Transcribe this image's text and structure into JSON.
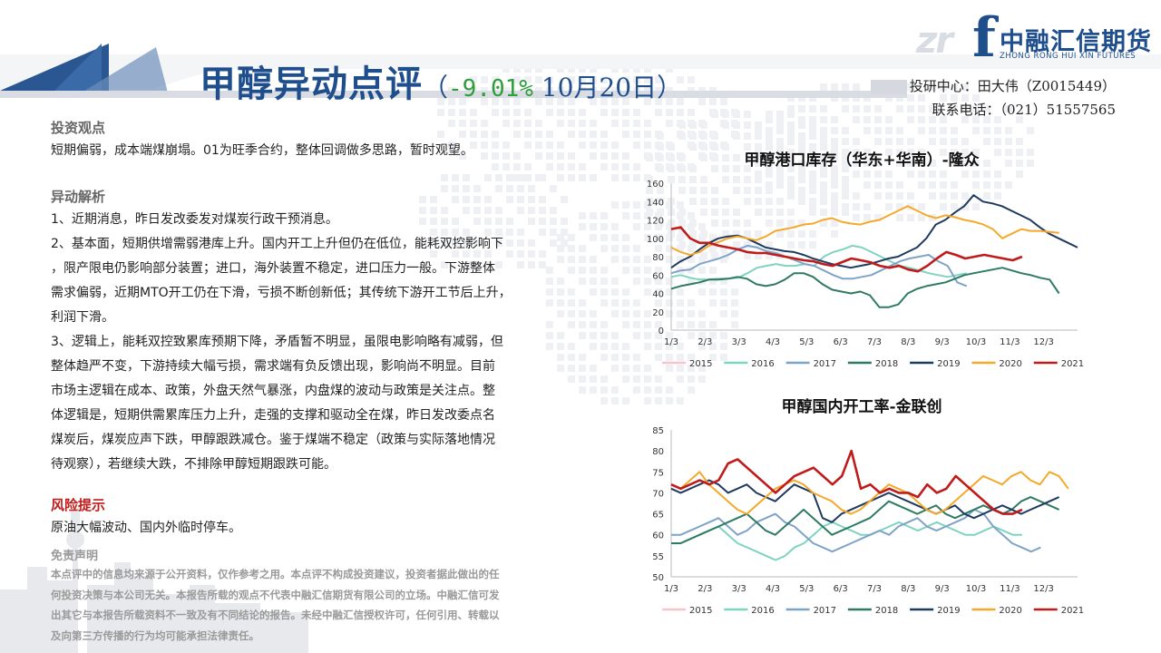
{
  "header": {
    "title_main": "甲醇异动点评",
    "title_paren_open": "（",
    "title_pct": "-9.01%",
    "title_date": " 10月20日）"
  },
  "logo": {
    "cn": "中融汇信期货",
    "en": "ZHONG RONG HUI XIN FUTURES",
    "letter": "f",
    "mark": "zr"
  },
  "contact": {
    "analyst": "投研中心：田大伟（Z0015449）",
    "phone": "联系电话：（021）51557565"
  },
  "sections": {
    "view_heading": "投资观点",
    "view_text": "短期偏弱，成本端煤崩塌。01为旺季合约，整体回调做多思路，暂时观望。",
    "analysis_heading": "异动解析",
    "analysis_lines": [
      "1、近期消息，昨日发改委发对煤炭行政干预消息。",
      "2、基本面，短期供增需弱港库上升。国内开工上升但仍在低位，能耗双控影响下",
      "，限产限电仍影响部分装置；进口，海外装置不稳定，进口压力一般。下游整体",
      "需求偏弱，近期MTO开工仍在下滑，亏损不断创新低；其传统下游开工节后上升，",
      "利润下滑。",
      "3、逻辑上，能耗双控致累库预期下降，矛盾暂不明显，虽限电影响略有减弱，但",
      "整体趋严不变，下游持续大幅亏损，需求端有负反馈出现，影响尚不明显。目前",
      "市场主逻辑在成本、政策，外盘天然气暴涨，内盘煤的波动与政策是关注点。整",
      "体逻辑是，短期供需累库压力上升，走强的支撑和驱动全在煤，昨日发改委点名",
      "煤炭后，煤炭应声下跌，甲醇跟跌减仓。鉴于煤端不稳定（政策与实际落地情况",
      "待观察），若继续大跌，不排除甲醇短期跟跌可能。"
    ],
    "risk_heading": "风险提示",
    "risk_text": "原油大幅波动、国内外临时停车。",
    "disclaimer_heading": "免责声明",
    "disclaimer_lines": [
      "本点评中的信息均来源于公开资料，仅作参考之用。本点评不构成投资建议，投资者据此做出的任",
      "何投资决策与本公司无关。本报告所载的观点不代表中融汇信期货有限公司的立场。中融汇信可发",
      "出其它与本报告所载资料不一致及有不同结论的报告。未经中融汇信授权许可，任何引用、转载以",
      "及向第三方传播的行为均可能承担法律责任。"
    ]
  },
  "colors": {
    "brand_blue": "#1f4e8c",
    "up_green": "#2e9e3a",
    "risk_red": "#c01b1b"
  },
  "chart_data": [
    {
      "type": "line",
      "title": "甲醇港口库存（华东+华南）-隆众",
      "xlabel": "",
      "ylabel": "",
      "x_ticks": [
        "1/3",
        "2/3",
        "3/3",
        "4/3",
        "5/3",
        "6/3",
        "7/3",
        "8/3",
        "9/3",
        "10/3",
        "11/3",
        "12/3"
      ],
      "ylim": [
        0,
        160
      ],
      "y_ticks": [
        0,
        20,
        40,
        60,
        80,
        100,
        120,
        140,
        160
      ],
      "grid": false,
      "legend": "bottom",
      "series": [
        {
          "name": "2015",
          "color": "#f3c6cc",
          "values": []
        },
        {
          "name": "2016",
          "color": "#7fd3c0",
          "values": [
            58,
            60,
            57,
            55,
            55,
            56,
            56,
            57,
            62,
            68,
            70,
            72,
            70,
            70,
            72,
            70,
            80,
            85,
            88,
            92,
            90,
            85,
            80,
            75,
            70,
            68,
            65,
            62,
            60,
            58,
            60,
            62
          ]
        },
        {
          "name": "2017",
          "color": "#7fa3c8",
          "values": [
            62,
            65,
            66,
            72,
            75,
            78,
            82,
            88,
            92,
            90,
            86,
            84,
            80,
            76,
            72,
            70,
            65,
            60,
            56,
            56,
            58,
            60,
            65,
            70,
            75,
            78,
            80,
            82,
            75,
            70,
            52,
            48
          ]
        },
        {
          "name": "2018",
          "color": "#2f7a63",
          "values": [
            45,
            48,
            50,
            52,
            55,
            55,
            56,
            58,
            56,
            50,
            48,
            50,
            55,
            62,
            62,
            58,
            50,
            44,
            42,
            40,
            42,
            38,
            25,
            25,
            28,
            40,
            45,
            48,
            50,
            52,
            56,
            60,
            62,
            64,
            66,
            68,
            65,
            62,
            60,
            57,
            55,
            40
          ]
        },
        {
          "name": "2019",
          "color": "#1e3a5f",
          "values": [
            68,
            75,
            80,
            88,
            95,
            100,
            102,
            103,
            100,
            95,
            90,
            88,
            86,
            85,
            82,
            78,
            75,
            72,
            70,
            68,
            70,
            72,
            75,
            78,
            80,
            85,
            90,
            100,
            115,
            120,
            128,
            135,
            147,
            140,
            138,
            135,
            130,
            125,
            120,
            112,
            105,
            100,
            95,
            90
          ]
        },
        {
          "name": "2020",
          "color": "#f5a82a",
          "values": [
            90,
            85,
            82,
            85,
            92,
            96,
            100,
            102,
            100,
            98,
            102,
            108,
            110,
            112,
            115,
            116,
            120,
            122,
            118,
            116,
            115,
            118,
            120,
            125,
            130,
            135,
            130,
            125,
            122,
            125,
            123,
            120,
            118,
            115,
            110,
            100,
            105,
            110,
            108,
            108,
            107,
            106
          ]
        },
        {
          "name": "2021",
          "color": "#c01b1b",
          "values": [
            110,
            112,
            100,
            95,
            95,
            92,
            90,
            88,
            85,
            84,
            84,
            82,
            80,
            78,
            76,
            75,
            72,
            70,
            74,
            78,
            76,
            74,
            70,
            68,
            70,
            66,
            64,
            70,
            78,
            85,
            82,
            78,
            80,
            82,
            80,
            78,
            76,
            80
          ]
        }
      ]
    },
    {
      "type": "line",
      "title": "甲醇国内开工率-金联创",
      "xlabel": "",
      "ylabel": "",
      "x_ticks": [
        "1/3",
        "2/3",
        "3/3",
        "4/3",
        "5/3",
        "6/3",
        "7/3",
        "8/3",
        "9/3",
        "10/3",
        "11/3",
        "12/3"
      ],
      "ylim": [
        50,
        85
      ],
      "y_ticks": [
        50,
        55,
        60,
        65,
        70,
        75,
        80,
        85
      ],
      "grid": false,
      "legend": "bottom",
      "series": [
        {
          "name": "2015",
          "color": "#f3c6cc",
          "values": []
        },
        {
          "name": "2016",
          "color": "#7fd3c0",
          "values": [
            58,
            58,
            59,
            60,
            61,
            62,
            60,
            58,
            57,
            56,
            55,
            54,
            55,
            57,
            58,
            60,
            62,
            63,
            62,
            61,
            60,
            60,
            61,
            62,
            63,
            62,
            61,
            62,
            63,
            62,
            61,
            60,
            60,
            61,
            62,
            61,
            60,
            60
          ]
        },
        {
          "name": "2017",
          "color": "#7fa3c8",
          "values": [
            60,
            60,
            61,
            62,
            63,
            64,
            62,
            60,
            61,
            63,
            64,
            65,
            63,
            62,
            60,
            58,
            57,
            56,
            57,
            58,
            59,
            60,
            61,
            60,
            62,
            63,
            64,
            62,
            61,
            62,
            63,
            64,
            66,
            65,
            62,
            60,
            58,
            57,
            56,
            57
          ]
        },
        {
          "name": "2018",
          "color": "#2f7a63",
          "values": [
            58,
            58,
            59,
            60,
            61,
            62,
            63,
            64,
            65,
            63,
            61,
            60,
            62,
            64,
            66,
            64,
            62,
            60,
            61,
            62,
            63,
            64,
            66,
            68,
            67,
            66,
            65,
            66,
            67,
            65,
            64,
            65,
            66,
            67,
            66,
            65,
            66,
            68,
            69,
            68,
            67,
            66
          ]
        },
        {
          "name": "2019",
          "color": "#1e3a5f",
          "values": [
            71,
            70,
            71,
            72,
            73,
            72,
            70,
            71,
            72,
            70,
            69,
            68,
            70,
            72,
            71,
            70,
            64,
            63,
            65,
            66,
            67,
            68,
            69,
            70,
            69,
            68,
            67,
            66,
            65,
            66,
            67,
            65,
            64,
            65,
            66,
            67,
            66,
            65,
            66,
            67,
            68,
            69
          ]
        },
        {
          "name": "2020",
          "color": "#f5a82a",
          "values": [
            72,
            71,
            73,
            75,
            72,
            70,
            68,
            66,
            65,
            67,
            69,
            71,
            72,
            73,
            72,
            70,
            69,
            68,
            66,
            65,
            66,
            68,
            70,
            72,
            71,
            70,
            68,
            66,
            65,
            66,
            68,
            70,
            72,
            74,
            73,
            72,
            74,
            75,
            73,
            72,
            75,
            74,
            71
          ]
        },
        {
          "name": "2021",
          "color": "#c01b1b",
          "values": [
            72,
            71,
            72,
            73,
            72,
            73,
            77,
            78,
            76,
            74,
            72,
            70,
            72,
            74,
            75,
            76,
            74,
            72,
            74,
            80,
            71,
            72,
            70,
            71,
            70,
            70,
            69,
            72,
            70,
            71,
            74,
            72,
            70,
            68,
            66,
            65,
            65,
            66
          ]
        }
      ]
    }
  ]
}
